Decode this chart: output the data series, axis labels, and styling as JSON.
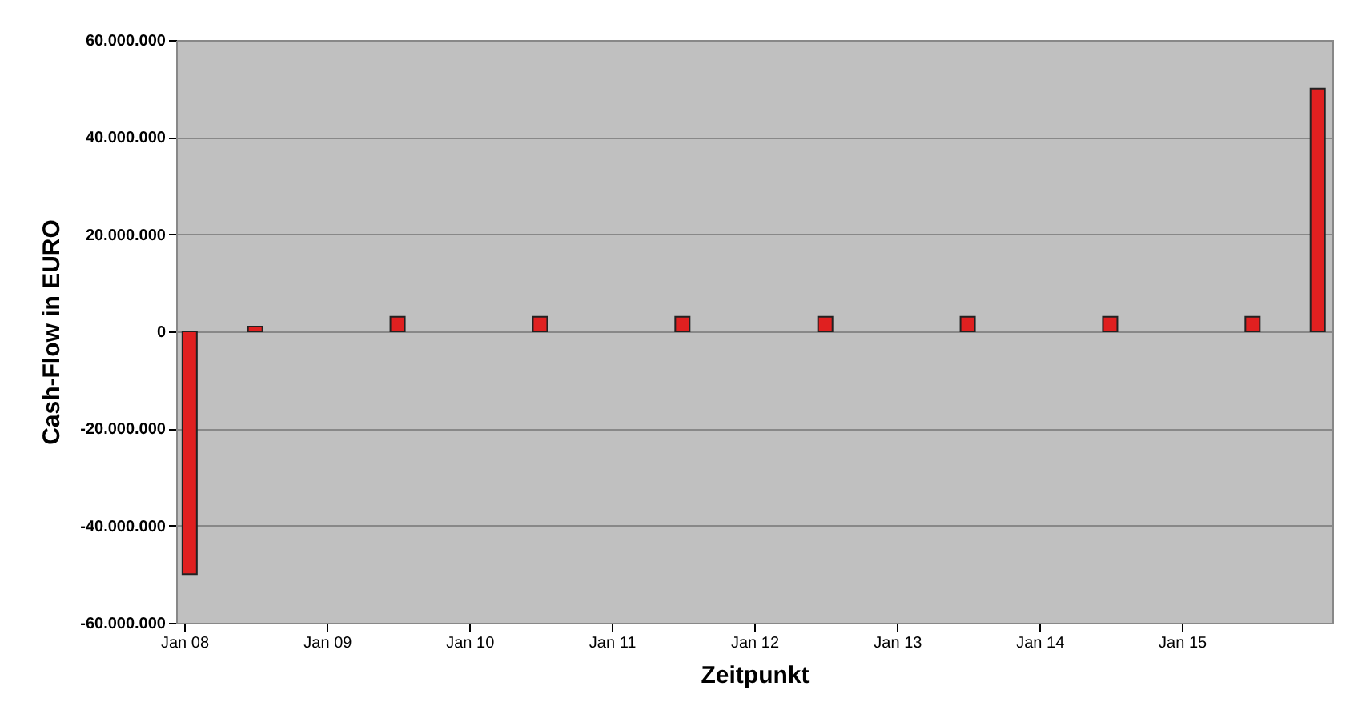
{
  "chart_data": {
    "type": "bar",
    "xlabel": "Zeitpunkt",
    "ylabel": "Cash-Flow in EURO",
    "x": [
      "2008-01-15",
      "2008-07-01",
      "2009-07-01",
      "2010-07-01",
      "2011-07-01",
      "2012-07-01",
      "2013-07-01",
      "2014-07-01",
      "2015-07-01",
      "2015-12-15"
    ],
    "series": [
      {
        "color": "#e02020",
        "values": [
          -50000000,
          1000000,
          3000000,
          3000000,
          3000000,
          3000000,
          3000000,
          3000000,
          3000000,
          50000000
        ]
      }
    ],
    "xlim": [
      "2008-01-01",
      "2016-01-01"
    ],
    "xticks": [
      {
        "value": "2008-01-01",
        "label": "Jan 08"
      },
      {
        "value": "2009-01-01",
        "label": "Jan 09"
      },
      {
        "value": "2010-01-01",
        "label": "Jan 10"
      },
      {
        "value": "2011-01-01",
        "label": "Jan 11"
      },
      {
        "value": "2012-01-01",
        "label": "Jan 12"
      },
      {
        "value": "2013-01-01",
        "label": "Jan 13"
      },
      {
        "value": "2014-01-01",
        "label": "Jan 14"
      },
      {
        "value": "2015-01-01",
        "label": "Jan 15"
      }
    ],
    "ylim": [
      -60000000,
      60000000
    ],
    "yticks": [
      {
        "value": -60000000,
        "label": "-60.000.000"
      },
      {
        "value": -40000000,
        "label": "-40.000.000"
      },
      {
        "value": -20000000,
        "label": "-20.000.000"
      },
      0,
      {
        "value": 20000000,
        "label": "20.000.000"
      },
      {
        "value": 40000000,
        "label": "40.000.000"
      },
      {
        "value": 60000000,
        "label": "60.000.000"
      }
    ],
    "grid": "y"
  }
}
